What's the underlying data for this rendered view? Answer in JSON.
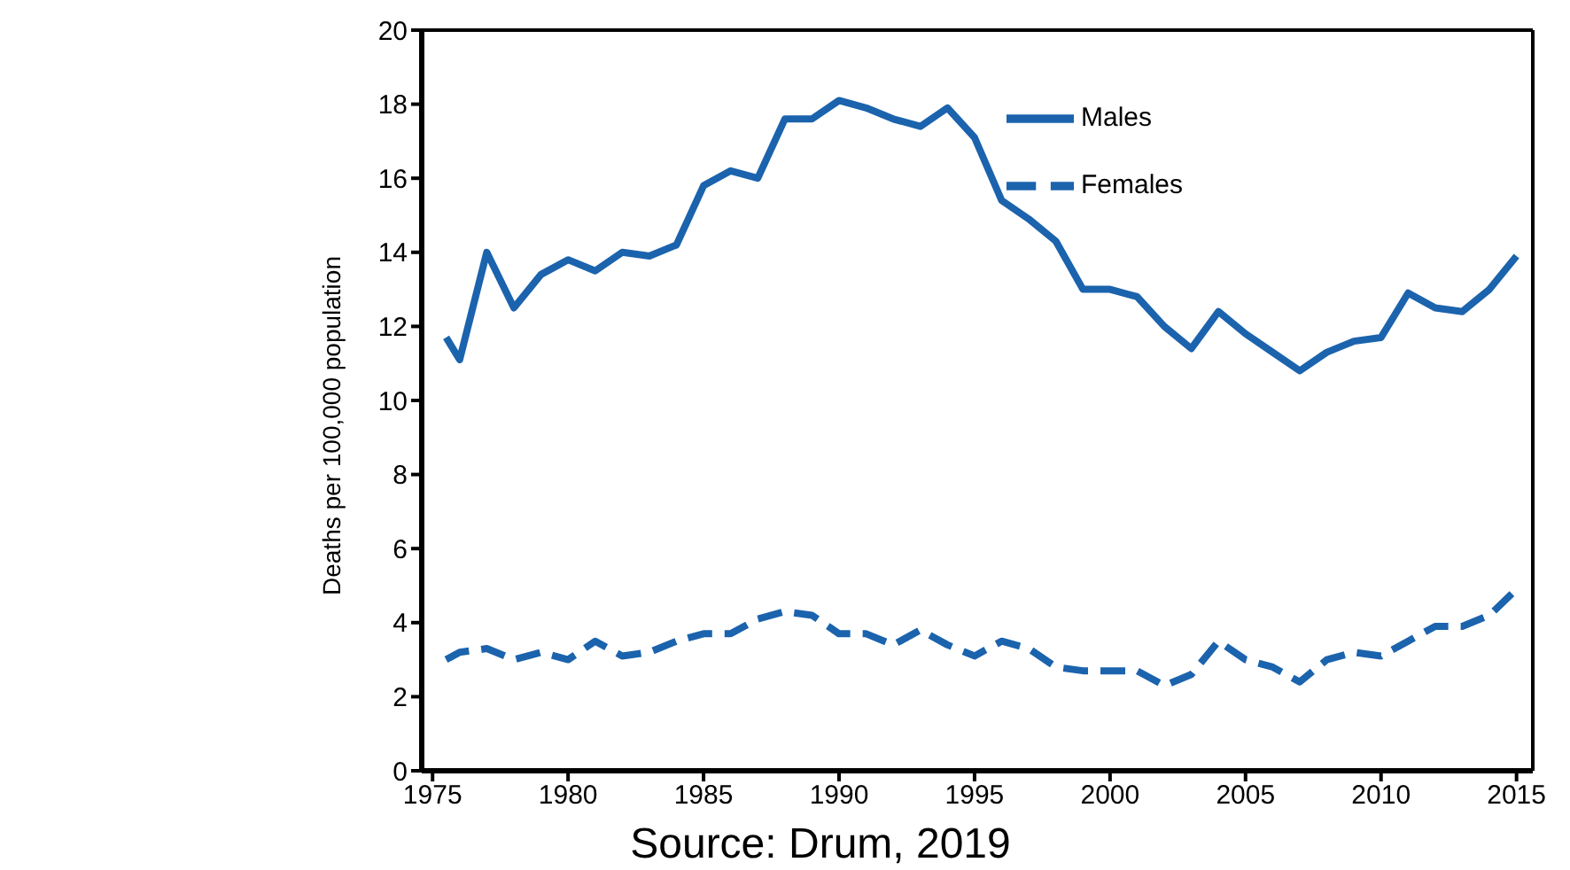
{
  "chart_data": {
    "type": "line",
    "ylabel": "Deaths per 100,000 population",
    "x": [
      1975.5,
      1976,
      1977,
      1978,
      1979,
      1980,
      1981,
      1982,
      1983,
      1984,
      1985,
      1986,
      1987,
      1988,
      1989,
      1990,
      1991,
      1992,
      1993,
      1994,
      1995,
      1996,
      1997,
      1998,
      1999,
      2000,
      2001,
      2002,
      2003,
      2004,
      2005,
      2006,
      2007,
      2008,
      2009,
      2010,
      2011,
      2012,
      2013,
      2014,
      2015
    ],
    "series": [
      {
        "name": "Males",
        "color": "#1b63ad",
        "line_style": "solid",
        "values": [
          11.7,
          11.1,
          14.0,
          12.5,
          13.4,
          13.8,
          13.5,
          14.0,
          13.9,
          14.2,
          15.8,
          16.2,
          16.0,
          17.6,
          17.6,
          18.1,
          17.9,
          17.6,
          17.4,
          17.9,
          17.1,
          15.4,
          14.9,
          14.3,
          13.0,
          13.0,
          12.8,
          12.0,
          11.4,
          12.4,
          11.8,
          11.3,
          10.8,
          11.3,
          11.6,
          11.7,
          12.9,
          12.5,
          12.4,
          13.0,
          13.9
        ]
      },
      {
        "name": "Females",
        "color": "#1b63ad",
        "line_style": "dashed",
        "values": [
          3.0,
          3.2,
          3.3,
          3.0,
          3.2,
          3.0,
          3.5,
          3.1,
          3.2,
          3.5,
          3.7,
          3.7,
          4.1,
          4.3,
          4.2,
          3.7,
          3.7,
          3.4,
          3.8,
          3.4,
          3.1,
          3.5,
          3.3,
          2.8,
          2.7,
          2.7,
          2.7,
          2.3,
          2.6,
          3.5,
          3.0,
          2.8,
          2.4,
          3.0,
          3.2,
          3.1,
          3.5,
          3.9,
          3.9,
          4.2,
          4.9
        ]
      }
    ],
    "xlim": [
      1974.6,
      2015.6
    ],
    "xticks": [
      1975,
      1980,
      1985,
      1990,
      1995,
      2000,
      2005,
      2010,
      2015
    ],
    "ylim": [
      0,
      20
    ],
    "yticks": [
      0,
      2,
      4,
      6,
      8,
      10,
      12,
      14,
      16,
      18,
      20
    ],
    "grid": false,
    "legend": "top right",
    "marker": "none",
    "annotations": [
      "Source: Drum, 2019"
    ]
  }
}
